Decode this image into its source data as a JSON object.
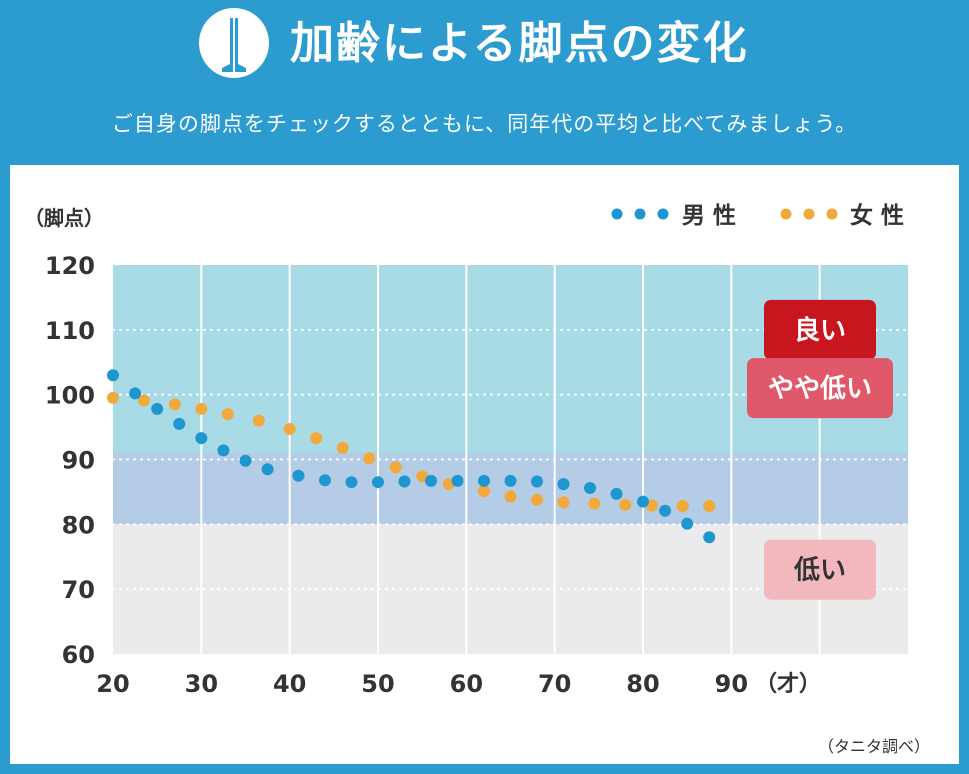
{
  "header": {
    "title": "加齢による脚点の変化",
    "subtitle": "ご自身の脚点をチェックするとともに、同年代の平均と比べてみましょう。"
  },
  "colors": {
    "background": "#2b9bd0",
    "male": "#1e96cf",
    "female": "#f2a93b",
    "zone_good": "#a9dbe7",
    "zone_fair": "#b4cce6",
    "zone_low": "#ebebeb",
    "badge_good": "#c8161e",
    "badge_fair": "#e0596a",
    "badge_low": "#f2b8be"
  },
  "chart_data": {
    "type": "scatter",
    "ylabel": "（脚点）",
    "x_unit": "（才）",
    "source": "（タニタ調べ）",
    "xlim": [
      20,
      110
    ],
    "ylim": [
      60,
      120
    ],
    "x_ticks": [
      "20",
      "30",
      "40",
      "50",
      "60",
      "70",
      "80",
      "90"
    ],
    "y_ticks": [
      "60",
      "70",
      "80",
      "90",
      "100",
      "110",
      "120"
    ],
    "zones": [
      {
        "label": "良い",
        "from": 91,
        "to": 120
      },
      {
        "label": "やや低い",
        "from": 80,
        "to": 91
      },
      {
        "label": "低い",
        "from": 60,
        "to": 80
      }
    ],
    "legend": {
      "position": "top-right",
      "male": "男 性",
      "female": "女 性"
    },
    "series": [
      {
        "name": "男 性",
        "x": [
          20,
          22.5,
          25,
          27.5,
          30,
          32.5,
          35,
          37.5,
          41,
          44,
          47,
          50,
          53,
          56,
          59,
          62,
          65,
          68,
          71,
          74,
          77,
          80,
          82.5,
          85,
          87.5
        ],
        "y": [
          103,
          100.2,
          97.8,
          95.5,
          93.3,
          91.4,
          89.8,
          88.5,
          87.5,
          86.8,
          86.5,
          86.5,
          86.6,
          86.7,
          86.7,
          86.7,
          86.7,
          86.6,
          86.2,
          85.6,
          84.7,
          83.5,
          82.1,
          80.1,
          78
        ]
      },
      {
        "name": "女 性",
        "x": [
          20,
          23.5,
          27,
          30,
          33,
          36.5,
          40,
          43,
          46,
          49,
          52,
          55,
          58,
          62,
          65,
          68,
          71,
          74.5,
          78,
          81,
          84.5,
          87.5
        ],
        "y": [
          99.5,
          99.1,
          98.5,
          97.8,
          97,
          96,
          94.7,
          93.3,
          91.8,
          90.2,
          88.8,
          87.4,
          86.2,
          85.1,
          84.3,
          83.8,
          83.4,
          83.2,
          83,
          82.9,
          82.8,
          82.8
        ]
      }
    ]
  }
}
